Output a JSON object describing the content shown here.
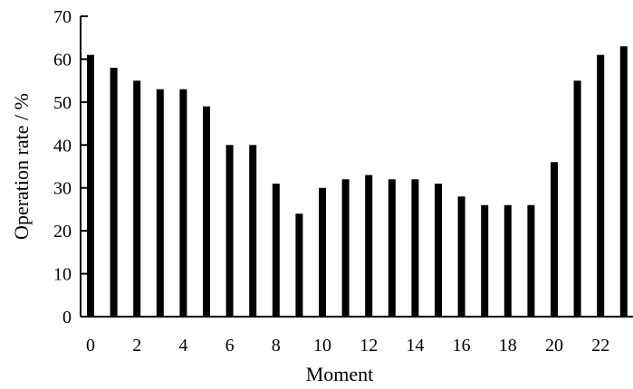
{
  "chart_data": {
    "type": "bar",
    "title": "",
    "xlabel": "Moment",
    "ylabel": "Operation rate / %",
    "categories": [
      0,
      1,
      2,
      3,
      4,
      5,
      6,
      7,
      8,
      9,
      10,
      11,
      12,
      13,
      14,
      15,
      16,
      17,
      18,
      19,
      20,
      21,
      22,
      23
    ],
    "x_tick_labels": [
      "0",
      "2",
      "4",
      "6",
      "8",
      "10",
      "12",
      "14",
      "16",
      "18",
      "20",
      "22"
    ],
    "y_tick_labels": [
      "0",
      "10",
      "20",
      "30",
      "40",
      "50",
      "60",
      "70"
    ],
    "values": [
      61,
      58,
      55,
      53,
      53,
      49,
      40,
      40,
      31,
      24,
      30,
      32,
      33,
      32,
      32,
      31,
      28,
      26,
      26,
      26,
      36,
      55,
      61,
      63
    ],
    "ylim": [
      0,
      70
    ],
    "grid": false,
    "legend": "none",
    "bar_color": "#000000"
  }
}
